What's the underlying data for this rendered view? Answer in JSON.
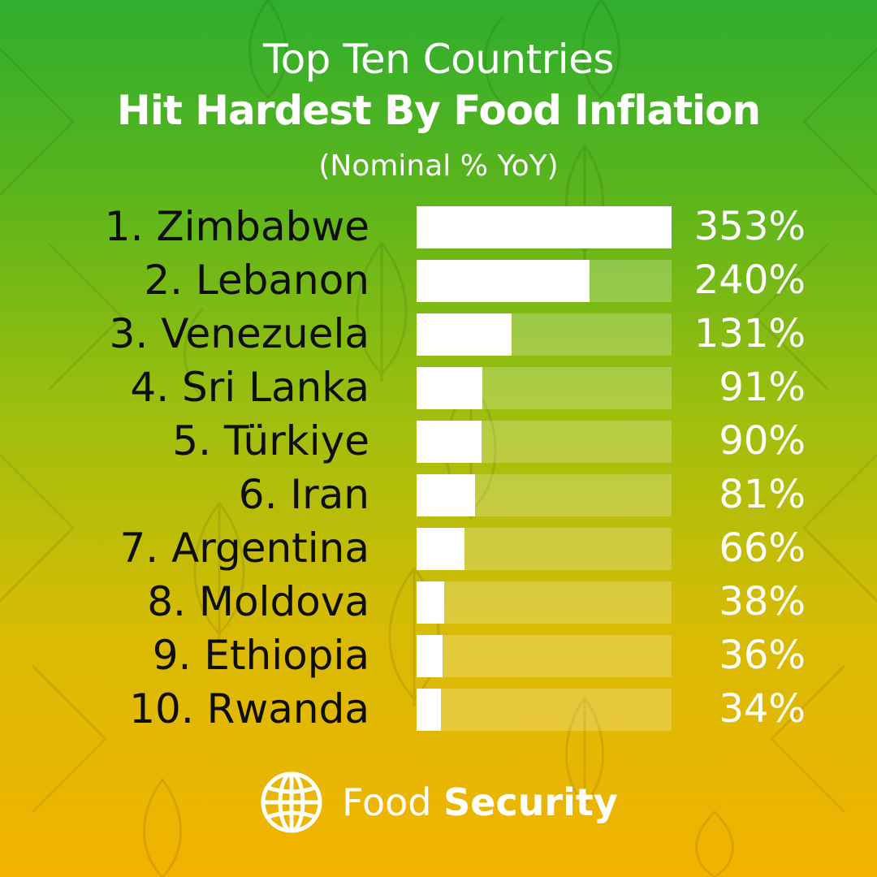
{
  "header": {
    "title_line1": "Top Ten Countries",
    "title_line2": "Hit Hardest By Food Inflation",
    "subtitle": "(Nominal % YoY)"
  },
  "chart_data": {
    "type": "bar",
    "orientation": "horizontal",
    "title": "Top Ten Countries Hit Hardest By Food Inflation",
    "subtitle": "(Nominal % YoY)",
    "categories": [
      "1. Zimbabwe",
      "2. Lebanon",
      "3. Venezuela",
      "4. Sri Lanka",
      "5. Türkiye",
      "6. Iran",
      "7. Argentina",
      "8. Moldova",
      "9. Ethiopia",
      "10. Rwanda"
    ],
    "values": [
      353,
      240,
      131,
      91,
      90,
      81,
      66,
      38,
      36,
      34
    ],
    "value_labels": [
      "353%",
      "240%",
      "131%",
      "91%",
      "90%",
      "81%",
      "66%",
      "38%",
      "36%",
      "34%"
    ],
    "xlim": [
      0,
      353
    ],
    "grid": false,
    "bar_color": "#ffffff",
    "track_color": "rgba(255,255,255,0.22)"
  },
  "footer": {
    "brand_light": "Food",
    "brand_bold": "Security",
    "icon": "globe-icon"
  },
  "colors": {
    "gradient_top": "#2fae2e",
    "gradient_bottom": "#f2b300",
    "label_text": "#0e0e0e",
    "value_text": "#ffffff"
  }
}
